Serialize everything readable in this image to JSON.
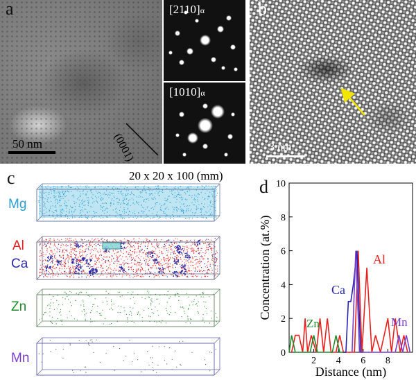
{
  "panel_a": {
    "label": "a",
    "scale_bar": "50 nm",
    "plane_label": "(0001)",
    "saed_top": {
      "zone": "[2110]",
      "sub": "α"
    },
    "saed_bottom": {
      "zone": "[1010]",
      "sub": "α"
    }
  },
  "panel_b": {
    "label": "b",
    "scale_bar": "3 nm",
    "arrow_color": "#f2e600"
  },
  "panel_c": {
    "label": "c",
    "dimension_label": "20 x 20 x 100 (mm)",
    "elements": [
      {
        "name": "Mg",
        "color": "#2a9fd6"
      },
      {
        "name": "Al",
        "color": "#e8201d"
      },
      {
        "name": "Ca",
        "color": "#2a2aa8"
      },
      {
        "name": "Zn",
        "color": "#1f8a2a"
      },
      {
        "name": "Mn",
        "color": "#7a3fc8"
      }
    ]
  },
  "panel_d": {
    "label": "d",
    "series_labels": {
      "Al": "Al",
      "Ca": "Ca",
      "Zn": "Zn",
      "Mn": "Mn"
    }
  },
  "chart_data": {
    "type": "line",
    "xlabel": "Distance (nm)",
    "ylabel": "Concentration (at.%)",
    "xlim": [
      0,
      10
    ],
    "ylim": [
      0,
      10
    ],
    "xticks": [
      2,
      4,
      6,
      8
    ],
    "yticks": [
      0,
      2,
      4,
      6,
      8,
      10
    ],
    "series": [
      {
        "name": "Al",
        "color": "#e8201d",
        "x": [
          0.2,
          0.5,
          0.8,
          1.1,
          1.3,
          1.5,
          1.8,
          2.2,
          2.5,
          2.8,
          3.1,
          3.4,
          3.8,
          4.1,
          4.4,
          4.7,
          5.0,
          5.3,
          5.6,
          5.9,
          6.3,
          6.7,
          7.0,
          7.4,
          7.7,
          8.0,
          8.3,
          8.6,
          9.0,
          9.3,
          9.6
        ],
        "y": [
          0,
          1,
          1,
          0,
          2,
          0,
          1,
          0,
          2,
          0,
          2,
          0,
          0,
          1,
          0,
          0,
          0,
          0,
          6,
          0,
          5,
          0,
          1,
          0,
          1,
          2,
          0,
          2,
          0,
          1,
          0
        ]
      },
      {
        "name": "Ca",
        "color": "#2424b4",
        "x": [
          4.3,
          4.6,
          4.8,
          5.0,
          5.2,
          5.5,
          5.8,
          6.0
        ],
        "y": [
          0,
          0,
          3,
          3,
          4,
          6,
          0,
          0
        ]
      },
      {
        "name": "Zn",
        "color": "#1f8a2a",
        "x": [
          0.0,
          0.2,
          0.5,
          1.7,
          2.0,
          2.3,
          3.5,
          3.8,
          4.1,
          4.4
        ],
        "y": [
          0,
          1,
          0,
          0,
          1,
          0,
          0,
          1,
          0,
          0
        ]
      },
      {
        "name": "Mn",
        "color": "#7a3fc8",
        "x": [
          5.1,
          5.4,
          5.7,
          8.6,
          8.9,
          9.2,
          9.5,
          9.8
        ],
        "y": [
          0,
          6,
          0,
          0,
          1,
          0,
          1,
          0
        ]
      }
    ]
  }
}
